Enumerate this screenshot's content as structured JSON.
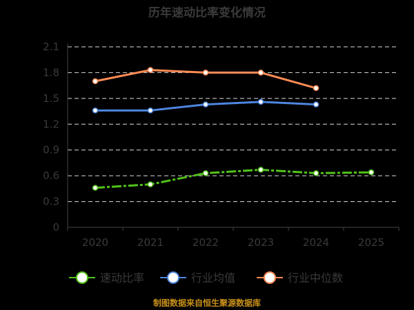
{
  "chart_data": {
    "type": "line",
    "title": "历年速动比率变化情况",
    "categories": [
      "2020",
      "2021",
      "2022",
      "2023",
      "2024",
      "2025"
    ],
    "ylim": [
      0,
      2.1
    ],
    "yticks": [
      "0",
      "0.3",
      "0.6",
      "0.9",
      "1.2",
      "1.5",
      "1.8",
      "2.1"
    ],
    "grid": true,
    "legend_position": "bottom",
    "series": [
      {
        "name": "速动比率",
        "color": "#52c41a",
        "dashed": true,
        "values": [
          0.46,
          0.5,
          0.63,
          0.67,
          0.63,
          0.64
        ]
      },
      {
        "name": "行业均值",
        "color": "#4e86e0",
        "dashed": false,
        "values": [
          1.36,
          1.36,
          1.43,
          1.46,
          1.43,
          null
        ]
      },
      {
        "name": "行业中位数",
        "color": "#ff8c55",
        "dashed": false,
        "values": [
          1.7,
          1.83,
          1.8,
          1.8,
          1.62,
          null
        ]
      }
    ],
    "source": "制图数据来自恒生聚源数据库"
  }
}
